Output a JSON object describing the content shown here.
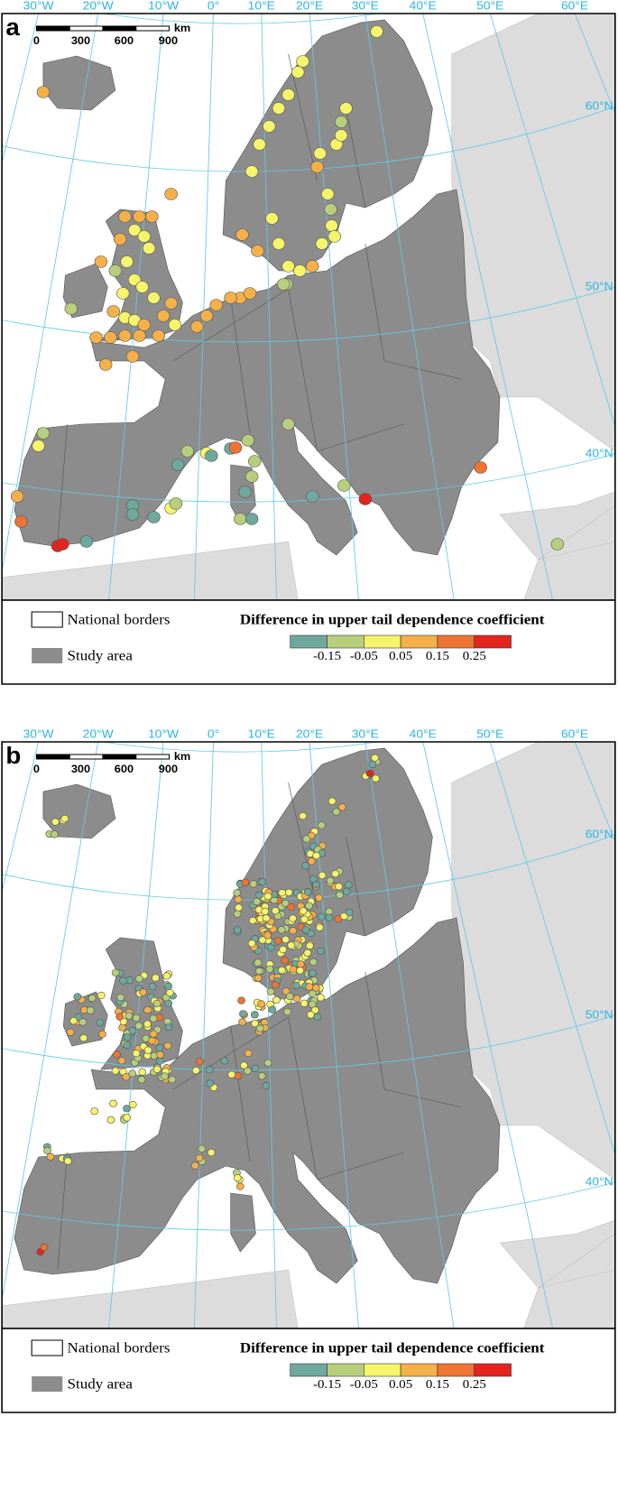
{
  "panels": [
    {
      "label": "a",
      "lon_labels": [
        "30°W",
        "20°W",
        "10°W",
        "0°",
        "10°E",
        "20°E",
        "30°E",
        "40°E",
        "50°E",
        "60°E"
      ],
      "lat_labels": [
        "60°N",
        "50°N",
        "40°N"
      ],
      "scale_bar": {
        "ticks": [
          "0",
          "300",
          "600",
          "900"
        ],
        "unit": "km"
      },
      "legend": {
        "borders": "National borders",
        "study_area": "Study area",
        "title": "Difference in upper tail dependence coefficient",
        "ticks": [
          "-0.15",
          "-0.05",
          "0.05",
          "0.15",
          "0.25"
        ],
        "colors": [
          "#6fa89e",
          "#b7cf7c",
          "#f6f46a",
          "#f5b04a",
          "#ee7432",
          "#e3241f"
        ]
      }
    },
    {
      "label": "b",
      "lon_labels": [
        "30°W",
        "20°W",
        "10°W",
        "0°",
        "10°E",
        "20°E",
        "30°E",
        "40°E",
        "50°E",
        "60°E"
      ],
      "lat_labels": [
        "60°N",
        "50°N",
        "40°N"
      ],
      "scale_bar": {
        "ticks": [
          "0",
          "300",
          "600",
          "900"
        ],
        "unit": "km"
      },
      "legend": {
        "borders": "National borders",
        "study_area": "Study area",
        "title": "Difference in upper tail dependence coefficient",
        "ticks": [
          "-0.15",
          "-0.05",
          "0.05",
          "0.15",
          "0.25"
        ],
        "colors": [
          "#6fa89e",
          "#b7cf7c",
          "#f6f46a",
          "#f5b04a",
          "#ee7432",
          "#e3241f"
        ]
      }
    }
  ]
}
